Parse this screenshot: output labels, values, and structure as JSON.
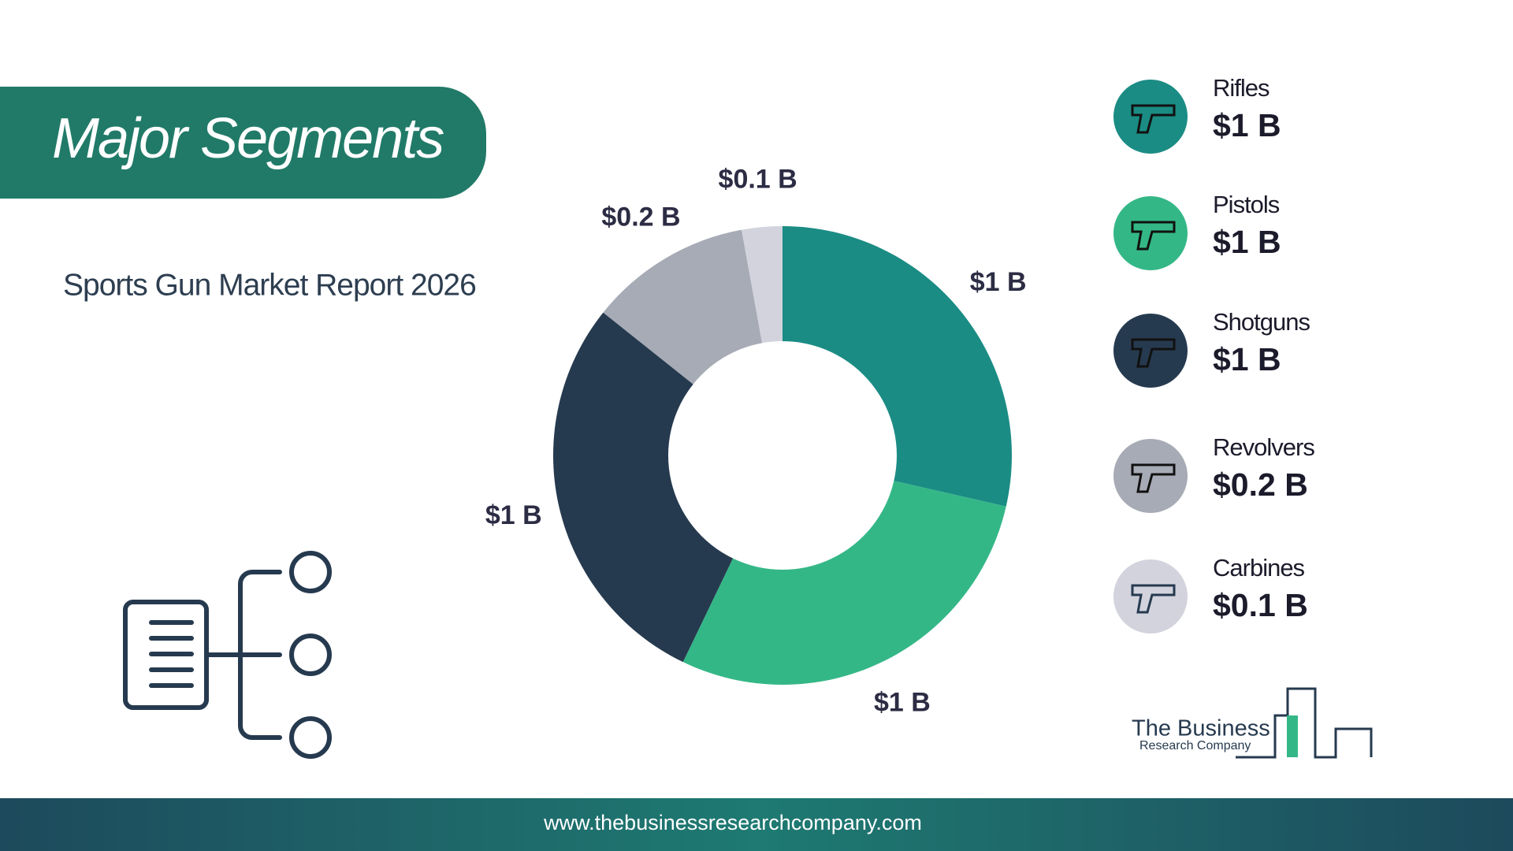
{
  "header": {
    "title": "Major Segments",
    "subtitle": "Sports Gun Market Report 2026"
  },
  "chart_data": {
    "type": "donut",
    "categories": [
      "Rifles",
      "Pistols",
      "Shotguns",
      "Revolvers",
      "Carbines"
    ],
    "values": [
      0.6,
      0.6,
      0.6,
      0.24,
      0.06
    ],
    "value_labels": [
      "$1 B",
      "$1 B",
      "$1 B",
      "$0.2 B",
      "$0.1 B"
    ],
    "colors": [
      "#1b8c84",
      "#34b787",
      "#263a4f",
      "#a7abb6",
      "#d2d3dd"
    ]
  },
  "logo": {
    "line1": "The Business",
    "line2": "Research Company"
  },
  "footer": {
    "url": "www.thebusinessresearchcompany.com"
  }
}
